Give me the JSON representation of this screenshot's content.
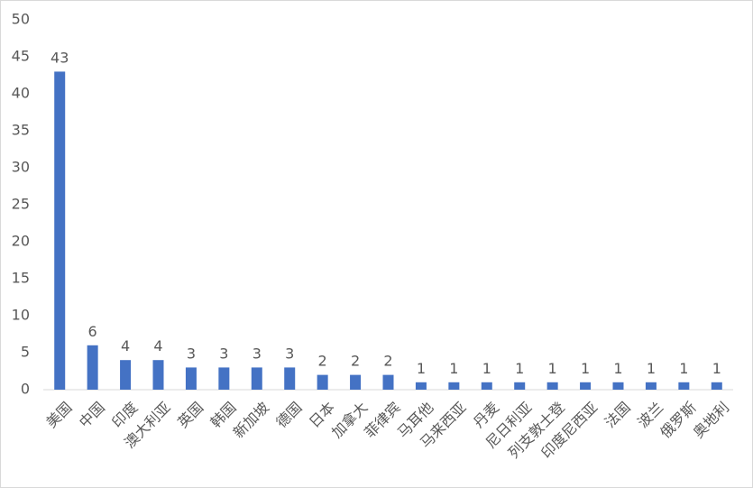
{
  "chart_data": {
    "type": "bar",
    "categories": [
      "美国",
      "中国",
      "印度",
      "澳大利亚",
      "英国",
      "韩国",
      "新加坡",
      "德国",
      "日本",
      "加拿大",
      "菲律宾",
      "马耳他",
      "马来西亚",
      "丹麦",
      "尼日利亚",
      "列支敦士登",
      "印度尼西亚",
      "法国",
      "波兰",
      "俄罗斯",
      "奥地利"
    ],
    "values": [
      43,
      6,
      4,
      4,
      3,
      3,
      3,
      3,
      2,
      2,
      2,
      1,
      1,
      1,
      1,
      1,
      1,
      1,
      1,
      1,
      1
    ],
    "color": "#4472c4",
    "ylim": [
      0,
      50
    ],
    "yticks": [
      0,
      5,
      10,
      15,
      20,
      25,
      30,
      35,
      40,
      45,
      50
    ],
    "grid": false
  }
}
